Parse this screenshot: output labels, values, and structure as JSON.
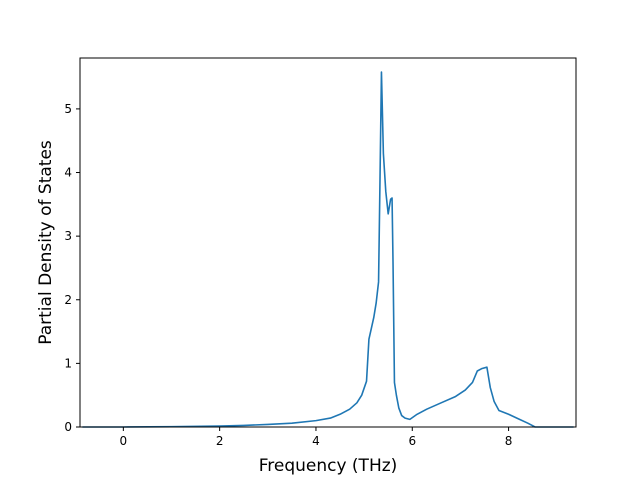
{
  "chart_data": {
    "type": "line",
    "title": "",
    "xlabel": "Frequency (THz)",
    "ylabel": "Partial Density of States",
    "xlim": [
      -0.9,
      9.4
    ],
    "ylim": [
      0,
      5.8
    ],
    "xticks": [
      0,
      2,
      4,
      6,
      8
    ],
    "yticks": [
      0,
      1,
      2,
      3,
      4,
      5
    ],
    "grid": false,
    "legend": "none",
    "series": [
      {
        "color": "#1f77b4",
        "x": [
          -0.85,
          0.0,
          1.0,
          2.0,
          2.5,
          3.0,
          3.5,
          4.0,
          4.3,
          4.5,
          4.7,
          4.85,
          4.95,
          5.05,
          5.1,
          5.15,
          5.2,
          5.25,
          5.3,
          5.33,
          5.36,
          5.4,
          5.45,
          5.5,
          5.55,
          5.58,
          5.6,
          5.63,
          5.67,
          5.72,
          5.78,
          5.85,
          5.95,
          6.1,
          6.3,
          6.6,
          6.9,
          7.1,
          7.25,
          7.35,
          7.45,
          7.55,
          7.62,
          7.7,
          7.8,
          8.0,
          8.2,
          8.4,
          8.5,
          8.55,
          8.7,
          9.0,
          9.35
        ],
        "y": [
          0.0,
          0.0,
          0.005,
          0.015,
          0.025,
          0.04,
          0.06,
          0.1,
          0.14,
          0.2,
          0.28,
          0.38,
          0.5,
          0.72,
          1.38,
          1.55,
          1.72,
          1.95,
          2.28,
          3.9,
          5.58,
          4.3,
          3.7,
          3.35,
          3.58,
          3.6,
          2.6,
          0.7,
          0.5,
          0.3,
          0.18,
          0.14,
          0.12,
          0.2,
          0.28,
          0.38,
          0.48,
          0.58,
          0.7,
          0.88,
          0.92,
          0.94,
          0.62,
          0.4,
          0.26,
          0.2,
          0.13,
          0.06,
          0.02,
          0.0,
          0.0,
          0.0,
          0.0
        ]
      }
    ]
  }
}
